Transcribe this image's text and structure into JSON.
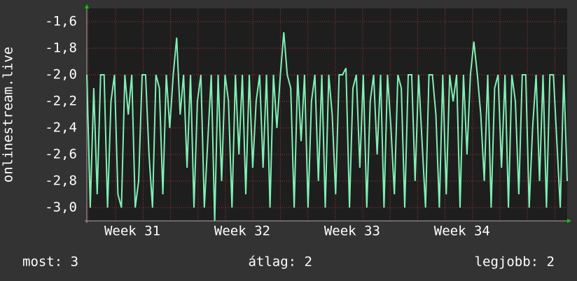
{
  "chart_data": {
    "type": "line",
    "ylabel": "onlinestream.live",
    "ylim": [
      -3.1,
      -1.5
    ],
    "yticks": [
      {
        "value": -1.6,
        "label": "-1,6"
      },
      {
        "value": -1.8,
        "label": "-1,8"
      },
      {
        "value": -2.0,
        "label": "-2,0"
      },
      {
        "value": -2.2,
        "label": "-2,2"
      },
      {
        "value": -2.4,
        "label": "-2,4"
      },
      {
        "value": -2.6,
        "label": "-2,6"
      },
      {
        "value": -2.8,
        "label": "-2,8"
      },
      {
        "value": -3.0,
        "label": "-3,0"
      }
    ],
    "xlim": [
      0,
      30.6
    ],
    "xticks": [
      {
        "value": 2.9,
        "label": "Week 31"
      },
      {
        "value": 9.9,
        "label": "Week 32"
      },
      {
        "value": 16.9,
        "label": "Week 33"
      },
      {
        "value": 23.9,
        "label": "Week 34"
      }
    ],
    "grid": true,
    "color": "#7ff0b4",
    "values": [
      -2.0,
      -3.0,
      -2.1,
      -2.9,
      -2.0,
      -2.0,
      -3.0,
      -2.2,
      -2.0,
      -2.9,
      -3.0,
      -2.0,
      -2.3,
      -2.0,
      -3.0,
      -2.8,
      -2.0,
      -2.0,
      -2.6,
      -3.0,
      -2.0,
      -2.1,
      -2.9,
      -2.0,
      -2.4,
      -2.0,
      -1.72,
      -2.3,
      -2.0,
      -2.7,
      -2.0,
      -3.0,
      -2.2,
      -2.0,
      -3.0,
      -2.5,
      -2.0,
      -3.1,
      -2.0,
      -2.8,
      -2.0,
      -2.2,
      -3.0,
      -2.0,
      -2.6,
      -2.0,
      -2.9,
      -2.0,
      -2.7,
      -2.2,
      -2.0,
      -2.7,
      -2.0,
      -3.0,
      -2.0,
      -2.4,
      -2.0,
      -1.68,
      -2.0,
      -2.1,
      -3.0,
      -2.0,
      -2.5,
      -2.0,
      -3.0,
      -2.2,
      -2.0,
      -2.8,
      -2.0,
      -3.0,
      -2.0,
      -2.3,
      -2.9,
      -2.0,
      -2.0,
      -1.95,
      -3.0,
      -2.1,
      -2.0,
      -2.7,
      -2.0,
      -3.0,
      -2.2,
      -2.0,
      -2.6,
      -2.0,
      -3.0,
      -2.0,
      -2.4,
      -2.9,
      -2.0,
      -2.1,
      -3.0,
      -2.0,
      -2.0,
      -2.8,
      -2.0,
      -2.5,
      -3.0,
      -2.0,
      -2.0,
      -2.3,
      -3.0,
      -2.0,
      -2.9,
      -2.0,
      -2.2,
      -2.0,
      -3.0,
      -2.0,
      -2.6,
      -2.0,
      -1.75,
      -2.0,
      -2.3,
      -2.8,
      -2.0,
      -3.0,
      -2.1,
      -2.0,
      -2.7,
      -2.0,
      -3.0,
      -2.0,
      -2.2,
      -2.9,
      -2.0,
      -2.0,
      -3.0,
      -2.4,
      -2.0,
      -2.8,
      -2.0,
      -3.0,
      -2.0,
      -2.0,
      -2.5,
      -3.0,
      -2.0,
      -2.8
    ],
    "footer": {
      "current": "most: 3",
      "average": "átlag: 2",
      "best": "legjobb: 2"
    }
  }
}
